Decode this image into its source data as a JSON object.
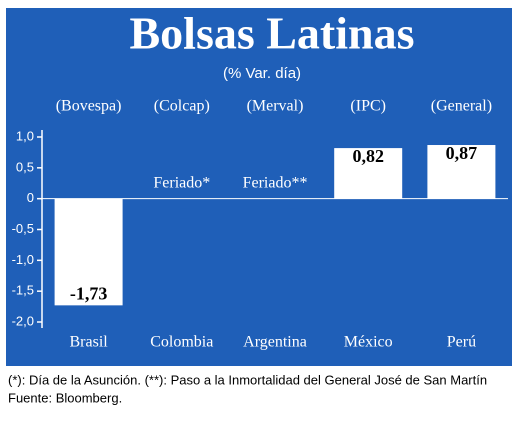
{
  "chart_data": {
    "type": "bar",
    "title": "Bolsas Latinas",
    "subtitle": "(% Var. día)",
    "indices": [
      "(Bovespa)",
      "(Colcap)",
      "(Merval)",
      "(IPC)",
      "(General)"
    ],
    "categories": [
      "Brasil",
      "Colombia",
      "Argentina",
      "México",
      "Perú"
    ],
    "values": [
      -1.73,
      null,
      null,
      0.82,
      0.87
    ],
    "value_labels": [
      "-1,73",
      "Feriado*",
      "Feriado**",
      "0,82",
      "0,87"
    ],
    "color": "#ffffff",
    "ylim": [
      -2.0,
      1.0
    ],
    "yticks": [
      {
        "value": 1.0,
        "label": "1,0"
      },
      {
        "value": 0.5,
        "label": "0,5"
      },
      0,
      {
        "value": -0.5,
        "label": "-0,5"
      },
      {
        "value": -1.0,
        "label": "-1,0"
      },
      {
        "value": -1.5,
        "label": "-1,5"
      },
      {
        "value": -2.0,
        "label": "-2,0"
      }
    ],
    "notes": [
      "(*): Día de la Asunción. (**): Paso a la Inmortalidad del General José de San Martín",
      "Fuente: Bloomberg."
    ]
  }
}
